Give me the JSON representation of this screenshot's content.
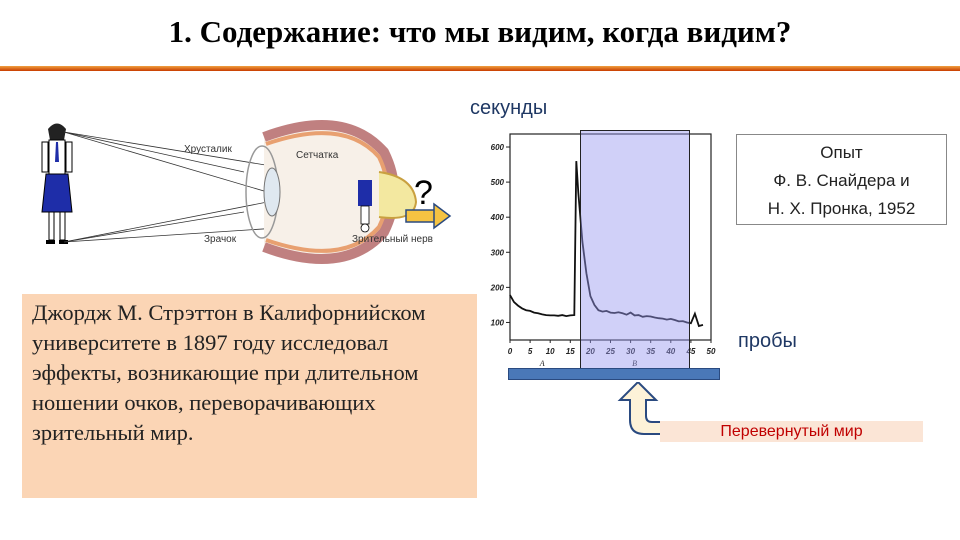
{
  "slide": {
    "title": "1. Содержание: что мы видим, когда видим?",
    "caption": "Джордж М. Стрэттон в Калифорнийском университете в 1897 году исследовал эффекты, возникающие при длительном ношении очков, переворачивающих зрительный мир.",
    "experiment_lines": [
      "Опыт",
      "Ф. В. Снайдера и",
      "Н. Х. Пронка, 1952"
    ],
    "inverted_world_label": "Перевернутый мир"
  },
  "eye_diagram": {
    "lens_label": "Хрусталик",
    "retina_label": "Сетчатка",
    "pupil_label": "Зрачок",
    "optic_nerve_label": "Зрительный нерв",
    "question_mark": "?"
  },
  "chart_data": {
    "type": "line",
    "ylabel": "секунды",
    "xlabel": "пробы",
    "y_ticks": [
      100,
      200,
      300,
      400,
      500,
      600
    ],
    "x_ticks": [
      0,
      5,
      10,
      15,
      20,
      25,
      30,
      35,
      40,
      45,
      50
    ],
    "phase_labels": [
      "A",
      "B"
    ],
    "xlim": [
      0,
      50
    ],
    "ylim": [
      50,
      620
    ],
    "highlight_range": [
      16,
      46
    ],
    "x": [
      0,
      1,
      2,
      3,
      4,
      5,
      6,
      7,
      8,
      9,
      10,
      11,
      12,
      13,
      14,
      15,
      16,
      16.5,
      17,
      18,
      19,
      20,
      21,
      22,
      23,
      24,
      25,
      26,
      27,
      28,
      29,
      30,
      31,
      32,
      33,
      34,
      35,
      36,
      37,
      38,
      39,
      40,
      41,
      42,
      43,
      44,
      45,
      46,
      47,
      48
    ],
    "y": [
      178,
      158,
      148,
      140,
      135,
      133,
      128,
      126,
      123,
      121,
      120,
      120,
      119,
      121,
      118,
      120,
      121,
      560,
      470,
      330,
      240,
      175,
      150,
      135,
      131,
      133,
      128,
      127,
      129,
      126,
      122,
      128,
      120,
      121,
      116,
      118,
      117,
      114,
      112,
      111,
      108,
      110,
      107,
      103,
      104,
      100,
      98,
      125,
      90,
      93
    ]
  }
}
